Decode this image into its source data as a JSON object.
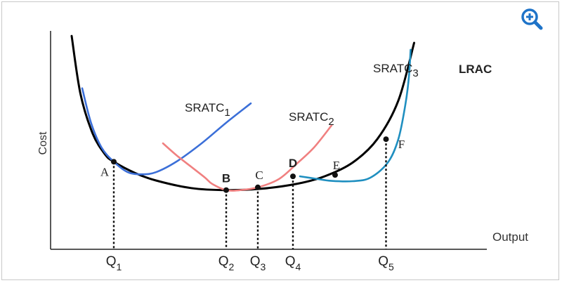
{
  "chart_data": {
    "type": "line",
    "xlabel": "Output",
    "ylabel": "Cost",
    "series": [
      {
        "name": "LRAC",
        "color": "#000000",
        "points": [
          [
            0.6,
            1.55
          ],
          [
            0.85,
            1.13
          ],
          [
            1.2,
            0.84
          ],
          [
            1.55,
            0.69
          ],
          [
            1.8,
            0.636
          ],
          [
            2.4,
            0.555
          ],
          [
            3.0,
            0.5
          ],
          [
            4.0,
            0.445
          ],
          [
            5.0,
            0.43
          ],
          [
            6.0,
            0.44
          ],
          [
            7.0,
            0.475
          ],
          [
            7.8,
            0.53
          ],
          [
            8.6,
            0.63
          ],
          [
            9.3,
            0.8
          ],
          [
            9.9,
            1.08
          ],
          [
            10.35,
            1.5
          ]
        ]
      },
      {
        "name": "SRATC1",
        "color": "#3b6fd8",
        "points": [
          [
            0.9,
            1.17
          ],
          [
            1.15,
            0.92
          ],
          [
            1.45,
            0.74
          ],
          [
            1.8,
            0.636
          ],
          [
            2.2,
            0.56
          ],
          [
            2.6,
            0.545
          ],
          [
            3.0,
            0.56
          ],
          [
            3.6,
            0.64
          ],
          [
            4.3,
            0.77
          ],
          [
            5.0,
            0.92
          ],
          [
            5.7,
            1.06
          ]
        ]
      },
      {
        "name": "SRATC2",
        "color": "#f08080",
        "points": [
          [
            3.2,
            0.77
          ],
          [
            3.6,
            0.68
          ],
          [
            4.0,
            0.6
          ],
          [
            4.4,
            0.52
          ],
          [
            4.6,
            0.475
          ],
          [
            5.0,
            0.43
          ],
          [
            5.4,
            0.43
          ],
          [
            5.9,
            0.45
          ],
          [
            6.5,
            0.51
          ],
          [
            7.0,
            0.62
          ],
          [
            7.5,
            0.74
          ],
          [
            8.0,
            0.9
          ]
        ]
      },
      {
        "name": "SRATC3",
        "color": "#1f8fc0",
        "points": [
          [
            7.1,
            0.53
          ],
          [
            7.5,
            0.515
          ],
          [
            8.0,
            0.497
          ],
          [
            8.6,
            0.495
          ],
          [
            9.1,
            0.52
          ],
          [
            9.6,
            0.63
          ],
          [
            9.9,
            0.8
          ],
          [
            10.1,
            1.05
          ],
          [
            10.2,
            1.25
          ],
          [
            10.25,
            1.45
          ]
        ]
      }
    ],
    "points": [
      {
        "label": "A",
        "x": 1.8,
        "y": 0.636
      },
      {
        "label": "B",
        "x": 5.0,
        "y": 0.43
      },
      {
        "label": "C",
        "x": 5.9,
        "y": 0.45
      },
      {
        "label": "D",
        "x": 6.9,
        "y": 0.53
      },
      {
        "label": "E",
        "x": 8.1,
        "y": 0.54
      },
      {
        "label": "F",
        "x": 9.55,
        "y": 0.8
      }
    ],
    "quantities": [
      {
        "label": "Q",
        "sub": "1",
        "x": 1.8
      },
      {
        "label": "Q",
        "sub": "2",
        "x": 5.0
      },
      {
        "label": "Q",
        "sub": "3",
        "x": 5.9
      },
      {
        "label": "Q",
        "sub": "4",
        "x": 6.9
      },
      {
        "label": "Q",
        "sub": "5",
        "x": 9.55
      }
    ],
    "curve_labels": [
      {
        "text": "SRATC",
        "sub": "1"
      },
      {
        "text": "SRATC",
        "sub": "2"
      },
      {
        "text": "SRATC",
        "sub": "3"
      },
      {
        "text": "LRAC",
        "sub": ""
      }
    ],
    "grid": false,
    "legend": "none"
  },
  "toolbar": {
    "zoom_icon": "zoom-in-icon",
    "accent": "#1e73c8"
  }
}
